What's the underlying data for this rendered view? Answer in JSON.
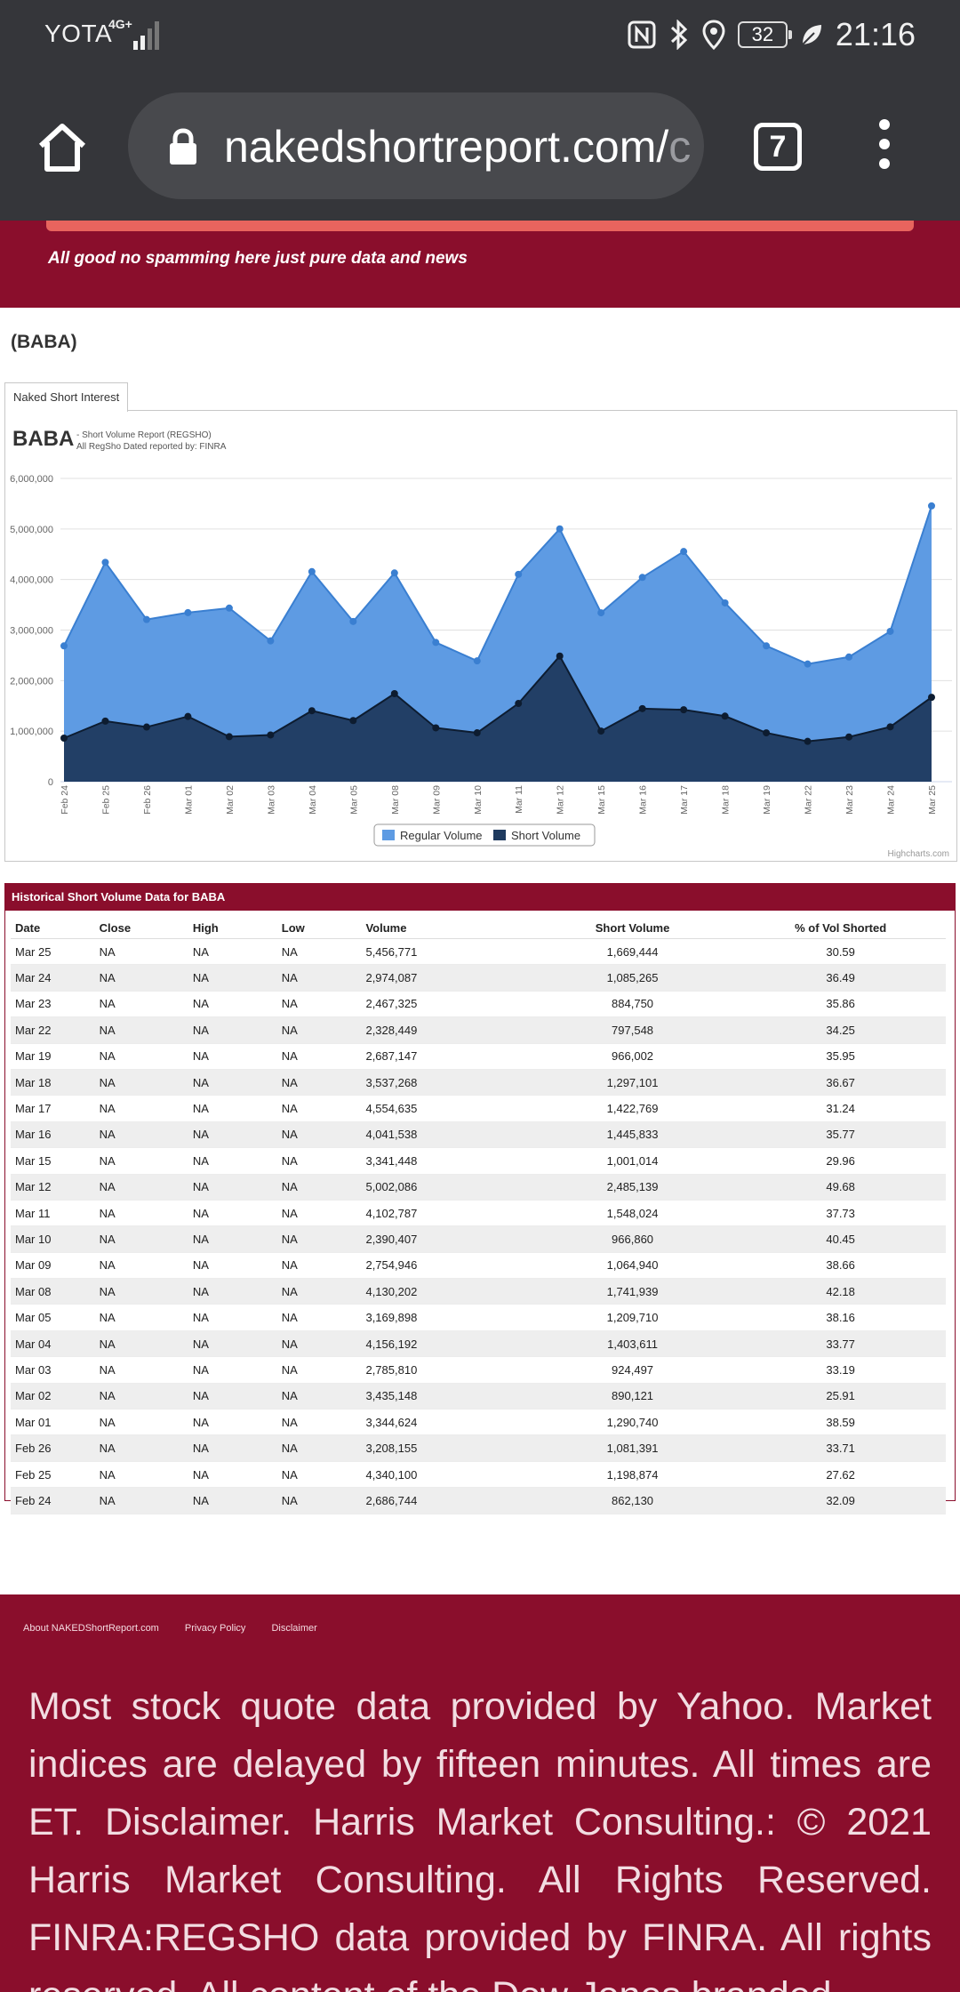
{
  "status_bar": {
    "carrier": "YOTA",
    "network": "4G+",
    "battery": "32",
    "time": "21:16",
    "icons": [
      "nfc-icon",
      "bluetooth-icon",
      "location-icon",
      "battery-icon",
      "leaf-icon"
    ]
  },
  "browser": {
    "url": "nakedshortreport.com/c",
    "url_visible_main": "nakedshortreport.com/",
    "url_visible_faded": "c",
    "tab_count": "7"
  },
  "banner": {
    "tagline": "All good no spamming here just pure data and news"
  },
  "page": {
    "ticker_heading": "(BABA)",
    "tab_label": "Naked Short Interest"
  },
  "chart_data": {
    "type": "area",
    "title": "BABA",
    "subtitle_line1": "- Short Volume Report  (REGSHO)",
    "subtitle_line2": "All RegSho Dated reported by: FINRA",
    "credit": "Highcharts.com",
    "categories": [
      "Feb 24",
      "Feb 25",
      "Feb 26",
      "Mar 01",
      "Mar 02",
      "Mar 03",
      "Mar 04",
      "Mar 05",
      "Mar 08",
      "Mar 09",
      "Mar 10",
      "Mar 11",
      "Mar 12",
      "Mar 15",
      "Mar 16",
      "Mar 17",
      "Mar 18",
      "Mar 19",
      "Mar 22",
      "Mar 23",
      "Mar 24",
      "Mar 25"
    ],
    "ylim": [
      0,
      6000000
    ],
    "yticks": [
      "0",
      "1,000,000",
      "2,000,000",
      "3,000,000",
      "4,000,000",
      "5,000,000",
      "6,000,000"
    ],
    "grid": true,
    "legend_position": "bottom-center",
    "series": [
      {
        "name": "Regular Volume",
        "color": "#5e9be3",
        "line_color": "#3a7fd1",
        "values": [
          2686744,
          4340100,
          3208155,
          3344624,
          3435148,
          2785810,
          4156192,
          3169898,
          4130202,
          2754946,
          2390407,
          4102787,
          5002086,
          3341448,
          4041538,
          4554635,
          3537268,
          2687147,
          2328449,
          2467325,
          2974087,
          5456771
        ]
      },
      {
        "name": "Short Volume",
        "color": "#1f3a5f",
        "line_color": "#0d1c30",
        "values": [
          862130,
          1198874,
          1081391,
          1290740,
          890121,
          924497,
          1403611,
          1209710,
          1741939,
          1064940,
          966860,
          1548024,
          2485139,
          1001014,
          1445833,
          1422769,
          1297101,
          966002,
          797548,
          884750,
          1085265,
          1669444
        ]
      }
    ]
  },
  "table": {
    "title": "Historical Short Volume Data for BABA",
    "headers": [
      "Date",
      "Close",
      "High",
      "Low",
      "Volume",
      "Short Volume",
      "% of Vol Shorted"
    ],
    "rows": [
      [
        "Mar 25",
        "NA",
        "NA",
        "NA",
        "5,456,771",
        "1,669,444",
        "30.59"
      ],
      [
        "Mar 24",
        "NA",
        "NA",
        "NA",
        "2,974,087",
        "1,085,265",
        "36.49"
      ],
      [
        "Mar 23",
        "NA",
        "NA",
        "NA",
        "2,467,325",
        "884,750",
        "35.86"
      ],
      [
        "Mar 22",
        "NA",
        "NA",
        "NA",
        "2,328,449",
        "797,548",
        "34.25"
      ],
      [
        "Mar 19",
        "NA",
        "NA",
        "NA",
        "2,687,147",
        "966,002",
        "35.95"
      ],
      [
        "Mar 18",
        "NA",
        "NA",
        "NA",
        "3,537,268",
        "1,297,101",
        "36.67"
      ],
      [
        "Mar 17",
        "NA",
        "NA",
        "NA",
        "4,554,635",
        "1,422,769",
        "31.24"
      ],
      [
        "Mar 16",
        "NA",
        "NA",
        "NA",
        "4,041,538",
        "1,445,833",
        "35.77"
      ],
      [
        "Mar 15",
        "NA",
        "NA",
        "NA",
        "3,341,448",
        "1,001,014",
        "29.96"
      ],
      [
        "Mar 12",
        "NA",
        "NA",
        "NA",
        "5,002,086",
        "2,485,139",
        "49.68"
      ],
      [
        "Mar 11",
        "NA",
        "NA",
        "NA",
        "4,102,787",
        "1,548,024",
        "37.73"
      ],
      [
        "Mar 10",
        "NA",
        "NA",
        "NA",
        "2,390,407",
        "966,860",
        "40.45"
      ],
      [
        "Mar 09",
        "NA",
        "NA",
        "NA",
        "2,754,946",
        "1,064,940",
        "38.66"
      ],
      [
        "Mar 08",
        "NA",
        "NA",
        "NA",
        "4,130,202",
        "1,741,939",
        "42.18"
      ],
      [
        "Mar 05",
        "NA",
        "NA",
        "NA",
        "3,169,898",
        "1,209,710",
        "38.16"
      ],
      [
        "Mar 04",
        "NA",
        "NA",
        "NA",
        "4,156,192",
        "1,403,611",
        "33.77"
      ],
      [
        "Mar 03",
        "NA",
        "NA",
        "NA",
        "2,785,810",
        "924,497",
        "33.19"
      ],
      [
        "Mar 02",
        "NA",
        "NA",
        "NA",
        "3,435,148",
        "890,121",
        "25.91"
      ],
      [
        "Mar 01",
        "NA",
        "NA",
        "NA",
        "3,344,624",
        "1,290,740",
        "38.59"
      ],
      [
        "Feb 26",
        "NA",
        "NA",
        "NA",
        "3,208,155",
        "1,081,391",
        "33.71"
      ],
      [
        "Feb 25",
        "NA",
        "NA",
        "NA",
        "4,340,100",
        "1,198,874",
        "27.62"
      ],
      [
        "Feb 24",
        "NA",
        "NA",
        "NA",
        "2,686,744",
        "862,130",
        "32.09"
      ]
    ]
  },
  "footer": {
    "links": [
      "About NAKEDShortReport.com",
      "Privacy Policy",
      "Disclaimer"
    ],
    "text": "Most stock quote data provided by Yahoo. Market indices are delayed by fifteen minutes. All times are ET. Disclaimer. Harris Market Consulting.: © 2021 Harris Market Consulting. All Rights Reserved. FINRA:REGSHO data provided by FINRA. All rights reserved. All content of the Dow Jones branded"
  }
}
